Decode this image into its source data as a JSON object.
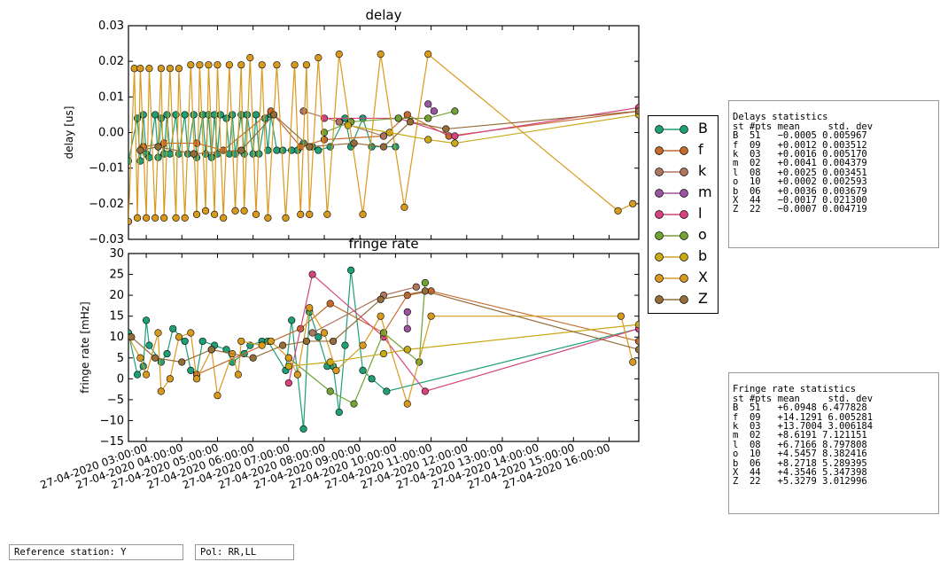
{
  "stations": [
    {
      "code": "B",
      "color": "#1f9e77"
    },
    {
      "code": "f",
      "color": "#c46a2c"
    },
    {
      "code": "k",
      "color": "#b0755f"
    },
    {
      "code": "m",
      "color": "#9a54a0"
    },
    {
      "code": "l",
      "color": "#d6437f"
    },
    {
      "code": "o",
      "color": "#74a133"
    },
    {
      "code": "b",
      "color": "#c9a916"
    },
    {
      "code": "X",
      "color": "#d89a1e"
    },
    {
      "code": "Z",
      "color": "#946d3a"
    }
  ],
  "chart_data": [
    {
      "type": "line",
      "title": "delay",
      "ylabel": "delay [us]",
      "ylim": [
        -0.03,
        0.03
      ],
      "yticks": [
        "0.03",
        "0.02",
        "0.01",
        "0.00",
        "−0.01",
        "−0.02",
        "−0.03"
      ],
      "xlim": [
        "27-04-2020 02:30:00",
        "27-04-2020 16:50:00"
      ],
      "series": [
        {
          "name": "B",
          "x": [
            "02:30",
            "02:45",
            "02:50",
            "02:55",
            "03:00",
            "03:05",
            "03:15",
            "03:20",
            "03:25",
            "03:30",
            "03:35",
            "03:40",
            "03:50",
            "03:55",
            "04:05",
            "04:10",
            "04:20",
            "04:25",
            "04:35",
            "04:40",
            "04:45",
            "04:50",
            "04:55",
            "05:00",
            "05:05",
            "05:15",
            "05:20",
            "05:25",
            "05:30",
            "05:40",
            "05:45",
            "05:50",
            "06:00",
            "06:05",
            "06:10",
            "06:20",
            "06:25",
            "06:30",
            "06:40",
            "06:50",
            "07:05",
            "07:15",
            "07:25",
            "07:40",
            "07:50",
            "08:10",
            "08:35",
            "08:45",
            "09:05",
            "09:20",
            "10:00"
          ],
          "y": [
            -0.008,
            0.004,
            -0.008,
            0.005,
            -0.006,
            -0.007,
            0.005,
            -0.007,
            0.004,
            -0.006,
            0.005,
            -0.006,
            0.005,
            -0.006,
            0.005,
            -0.006,
            0.005,
            -0.007,
            0.005,
            -0.006,
            0.005,
            -0.007,
            0.005,
            -0.006,
            0.005,
            0.004,
            -0.006,
            0.005,
            -0.006,
            0.005,
            -0.006,
            0.005,
            -0.006,
            0.005,
            -0.006,
            0.004,
            -0.005,
            0.005,
            -0.005,
            -0.005,
            -0.005,
            -0.005,
            -0.003,
            -0.004,
            -0.005,
            -0.004,
            0.004,
            -0.004,
            0.004,
            -0.004,
            -0.004
          ]
        },
        {
          "name": "f",
          "x": [
            "02:55",
            "03:30",
            "04:25",
            "05:10",
            "06:30",
            "07:20",
            "08:00",
            "09:40",
            "10:20",
            "11:30",
            "16:50"
          ],
          "y": [
            -0.004,
            -0.003,
            -0.003,
            -0.005,
            0.006,
            -0.004,
            -0.002,
            -0.001,
            0.005,
            -0.001,
            0.006
          ]
        },
        {
          "name": "k",
          "x": [
            "07:25",
            "08:25",
            "09:40"
          ],
          "y": [
            0.006,
            0.003,
            -0.001
          ]
        },
        {
          "name": "m",
          "x": [
            "10:55",
            "11:05"
          ],
          "y": [
            0.008,
            0.006
          ]
        },
        {
          "name": "l",
          "x": [
            "08:00",
            "10:05",
            "11:40",
            "16:50"
          ],
          "y": [
            0.004,
            0.004,
            -0.001,
            0.007
          ]
        },
        {
          "name": "o",
          "x": [
            "08:00",
            "08:45",
            "10:05",
            "10:55",
            "11:40"
          ],
          "y": [
            0.0,
            0.003,
            0.004,
            0.004,
            0.006
          ]
        },
        {
          "name": "b",
          "x": [
            "08:40",
            "09:50",
            "10:55",
            "11:40",
            "16:50"
          ],
          "y": [
            0.002,
            0.0,
            -0.002,
            -0.003,
            0.005
          ]
        },
        {
          "name": "X",
          "x": [
            "02:30",
            "02:40",
            "02:45",
            "02:50",
            "03:00",
            "03:05",
            "03:15",
            "03:25",
            "03:30",
            "03:40",
            "03:50",
            "03:55",
            "04:05",
            "04:15",
            "04:25",
            "04:30",
            "04:40",
            "04:45",
            "04:55",
            "05:00",
            "05:10",
            "05:20",
            "05:30",
            "05:40",
            "05:45",
            "05:55",
            "06:05",
            "06:15",
            "06:25",
            "06:40",
            "06:55",
            "07:10",
            "07:20",
            "07:30",
            "07:35",
            "07:50",
            "08:05",
            "08:25",
            "09:05",
            "09:35",
            "10:15",
            "10:55",
            "16:15",
            "16:40"
          ],
          "y": [
            -0.025,
            0.018,
            -0.024,
            0.018,
            -0.024,
            0.018,
            -0.024,
            0.018,
            -0.024,
            0.018,
            -0.024,
            0.018,
            -0.024,
            0.019,
            -0.023,
            0.019,
            -0.022,
            0.019,
            -0.023,
            0.019,
            -0.024,
            0.019,
            -0.022,
            0.019,
            -0.022,
            0.021,
            -0.023,
            0.019,
            -0.024,
            0.019,
            -0.024,
            0.019,
            -0.023,
            0.019,
            -0.023,
            0.021,
            -0.023,
            0.022,
            -0.023,
            0.022,
            -0.021,
            0.022,
            -0.022,
            -0.02
          ]
        },
        {
          "name": "Z",
          "x": [
            "02:50",
            "03:20",
            "04:20",
            "05:40",
            "06:35",
            "07:35",
            "08:50",
            "09:40",
            "10:25",
            "11:25",
            "16:50"
          ],
          "y": [
            -0.005,
            -0.004,
            -0.006,
            -0.005,
            0.005,
            -0.004,
            -0.003,
            -0.004,
            0.003,
            0.001,
            0.006
          ]
        }
      ]
    },
    {
      "type": "line",
      "title": "fringe rate",
      "ylabel": "fringe rate [mHz]",
      "ylim": [
        -15,
        30
      ],
      "yticks": [
        "30",
        "25",
        "20",
        "15",
        "10",
        "5",
        "0",
        "−5",
        "−10",
        "−15"
      ],
      "xticks": [
        "27-04-2020 03:00:00",
        "27-04-2020 04:00:00",
        "27-04-2020 05:00:00",
        "27-04-2020 06:00:00",
        "27-04-2020 07:00:00",
        "27-04-2020 08:00:00",
        "27-04-2020 09:00:00",
        "27-04-2020 10:00:00",
        "27-04-2020 11:00:00",
        "27-04-2020 12:00:00",
        "27-04-2020 13:00:00",
        "27-04-2020 14:00:00",
        "27-04-2020 15:00:00",
        "27-04-2020 16:00:00"
      ],
      "xlim": [
        "27-04-2020 02:30:00",
        "27-04-2020 16:50:00"
      ],
      "series": [
        {
          "name": "B",
          "x": [
            "02:30",
            "02:45",
            "02:55",
            "03:00",
            "03:05",
            "03:25",
            "03:35",
            "03:45",
            "04:05",
            "04:15",
            "04:25",
            "04:35",
            "04:55",
            "05:15",
            "05:25",
            "05:45",
            "05:55",
            "06:15",
            "06:25",
            "06:55",
            "07:05",
            "07:25",
            "07:35",
            "07:50",
            "08:05",
            "08:15",
            "08:25",
            "08:35",
            "08:45",
            "09:05",
            "09:20",
            "09:45",
            "16:50"
          ],
          "y": [
            11,
            1,
            3,
            14,
            8,
            4,
            6,
            12,
            9,
            2,
            1,
            9,
            8,
            7,
            4,
            6,
            8,
            9,
            9,
            2,
            14,
            -12,
            16,
            10,
            3,
            3,
            -8,
            8,
            26,
            2,
            0,
            -3,
            12
          ]
        },
        {
          "name": "f",
          "x": [
            "04:25",
            "07:20",
            "08:10",
            "09:40",
            "10:20",
            "11:00",
            "16:50"
          ],
          "y": [
            1,
            12,
            18,
            11,
            20,
            21,
            9
          ]
        },
        {
          "name": "k",
          "x": [
            "07:40",
            "09:40",
            "10:35"
          ],
          "y": [
            11,
            20,
            22
          ]
        },
        {
          "name": "m",
          "x": [
            "10:20",
            "10:20"
          ],
          "y": [
            16,
            12
          ]
        },
        {
          "name": "l",
          "x": [
            "07:00",
            "07:40",
            "09:40",
            "10:50",
            "16:50"
          ],
          "y": [
            -1,
            25,
            10,
            -3,
            12
          ]
        },
        {
          "name": "o",
          "x": [
            "07:00",
            "08:10",
            "08:50",
            "09:40",
            "10:40",
            "10:50"
          ],
          "y": [
            5,
            -3,
            -6,
            11,
            4,
            23
          ]
        },
        {
          "name": "b",
          "x": [
            "07:00",
            "08:10",
            "09:40",
            "10:20",
            "16:50"
          ],
          "y": [
            3,
            4,
            6,
            7,
            13
          ]
        },
        {
          "name": "X",
          "x": [
            "02:30",
            "02:50",
            "03:00",
            "03:20",
            "03:25",
            "03:40",
            "03:55",
            "04:15",
            "04:25",
            "04:50",
            "05:00",
            "05:25",
            "05:35",
            "05:40",
            "06:15",
            "06:30",
            "07:00",
            "07:15",
            "07:35",
            "08:00",
            "08:20",
            "09:05",
            "09:35",
            "10:20",
            "11:00",
            "16:20",
            "16:40"
          ],
          "y": [
            10,
            5,
            1,
            11,
            -3,
            0,
            10,
            11,
            0,
            7,
            -4,
            6,
            1,
            9,
            8,
            9,
            5,
            1,
            17,
            11,
            2,
            8,
            15,
            -6,
            15,
            15,
            4
          ]
        },
        {
          "name": "Z",
          "x": [
            "02:35",
            "03:15",
            "04:00",
            "04:50",
            "06:00",
            "06:50",
            "07:30",
            "08:15",
            "09:35",
            "10:50",
            "16:50"
          ],
          "y": [
            10,
            5,
            4,
            7,
            5,
            8,
            9,
            9,
            19,
            21,
            7
          ]
        }
      ]
    }
  ],
  "delay_stats": {
    "title": "Delays statistics",
    "header": "st #pts mean     std. dev",
    "rows": [
      "B  51   −0.0005 0.005967",
      "f  09   +0.0012 0.003512",
      "k  03   +0.0016 0.005170",
      "m  02   +0.0041 0.004379",
      "l  08   +0.0025 0.003451",
      "o  10   +0.0002 0.002593",
      "b  06   +0.0036 0.003679",
      "X  44   −0.0017 0.021300",
      "Z  22   −0.0007 0.004719"
    ]
  },
  "rate_stats": {
    "title": "Fringe rate statistics",
    "header": "st #pts mean     std. dev",
    "rows": [
      "B  51   +6.0948 6.477828",
      "f  09   +14.1291 6.005281",
      "k  03   +13.7004 3.006184",
      "m  02   +8.6191 7.121151",
      "l  08   +6.7166 8.797808",
      "o  10   +4.5457 8.382416",
      "b  06   +8.2718 5.289395",
      "X  44   +4.3546 5.347398",
      "Z  22   +5.3279 3.012996"
    ]
  },
  "footer": {
    "reference": "Reference station: Y",
    "pol": "Pol: RR,LL"
  }
}
